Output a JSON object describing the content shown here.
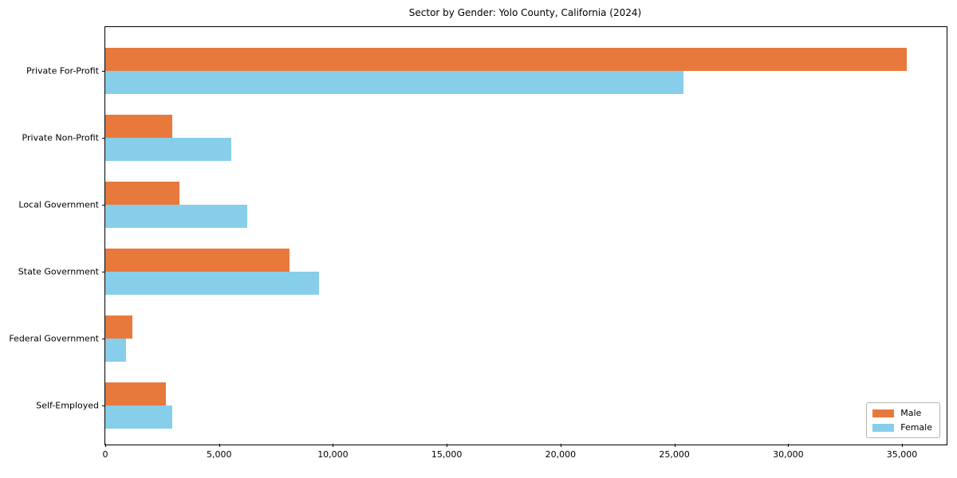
{
  "chart_data": {
    "type": "bar",
    "orientation": "horizontal",
    "title": "Sector by Gender: Yolo County, California (2024)",
    "categories": [
      "Private For-Profit",
      "Private Non-Profit",
      "Local Government",
      "State Government",
      "Federal Government",
      "Self-Employed"
    ],
    "series": [
      {
        "name": "Male",
        "color": "#E8793D",
        "values": [
          35200,
          2950,
          3250,
          8100,
          1200,
          2650
        ]
      },
      {
        "name": "Female",
        "color": "#87CEEB",
        "values": [
          25400,
          5550,
          6250,
          9400,
          900,
          2950
        ]
      }
    ],
    "xlabel": "",
    "ylabel": "",
    "xlim": [
      0,
      36960
    ],
    "xticks": [
      0,
      5000,
      10000,
      15000,
      20000,
      25000,
      30000,
      35000
    ],
    "grid": false,
    "legend_position": "lower right"
  }
}
